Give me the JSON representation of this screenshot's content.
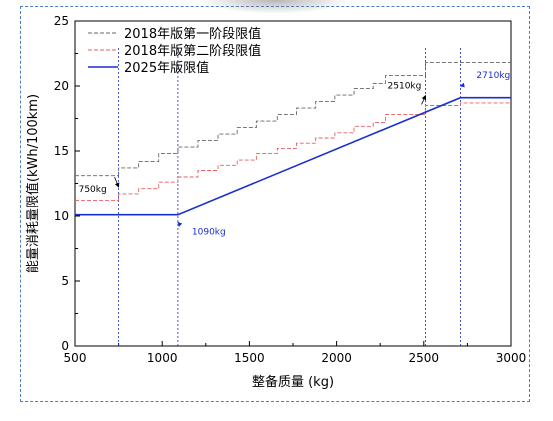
{
  "chart_data": {
    "type": "line",
    "xlabel": "整备质量 (kg)",
    "ylabel": "能量消耗量限值(kWh/100km)",
    "xlim": [
      500,
      3000
    ],
    "ylim": [
      0,
      25
    ],
    "x_ticks": [
      500,
      1000,
      1500,
      2000,
      2500,
      3000
    ],
    "y_ticks": [
      0,
      5,
      10,
      15,
      20,
      25
    ],
    "legend_position": "top-left",
    "grid": false,
    "series": [
      {
        "name": "2018年版第一阶段限值",
        "style": "dashed",
        "color": "#666666",
        "x": [
          500,
          750,
          865,
          980,
          1090,
          1205,
          1320,
          1430,
          1540,
          1660,
          1770,
          1880,
          1990,
          2100,
          2210,
          2280,
          2510,
          3000
        ],
        "y": [
          13.1,
          13.7,
          14.2,
          14.8,
          15.3,
          15.8,
          16.3,
          16.8,
          17.3,
          17.8,
          18.3,
          18.8,
          19.3,
          19.8,
          20.2,
          20.8,
          21.8,
          21.8
        ]
      },
      {
        "name": "2018年版第二阶段限值",
        "style": "dashed",
        "color": "#e06060",
        "x": [
          500,
          750,
          865,
          980,
          1090,
          1205,
          1320,
          1430,
          1540,
          1660,
          1770,
          1880,
          1990,
          2100,
          2210,
          2280,
          2510,
          2710,
          3000
        ],
        "y": [
          11.2,
          11.7,
          12.1,
          12.6,
          13.0,
          13.5,
          13.9,
          14.3,
          14.8,
          15.2,
          15.6,
          16.0,
          16.4,
          16.9,
          17.2,
          17.8,
          18.5,
          18.7,
          18.7
        ]
      },
      {
        "name": "2025年版限值",
        "style": "solid",
        "color": "#1a2fd0",
        "x": [
          500,
          1090,
          2710,
          3000
        ],
        "y": [
          10.1,
          10.1,
          19.1,
          19.1
        ]
      }
    ],
    "vertical_markers": [
      {
        "x": 750,
        "color": "#1a2fd0"
      },
      {
        "x": 1090,
        "color": "#1a2fd0"
      },
      {
        "x": 2510,
        "color": "#333333"
      },
      {
        "x": 2710,
        "color": "#1a2fd0"
      }
    ],
    "annotations": [
      {
        "text": "750kg",
        "x": 750,
        "y": 12.3,
        "color": "#000000"
      },
      {
        "text": "1090kg",
        "x": 1090,
        "y": 9.5,
        "color": "#1a2fd0"
      },
      {
        "text": "2510kg",
        "x": 2510,
        "y": 19.2,
        "color": "#000000"
      },
      {
        "text": "2710kg",
        "x": 2710,
        "y": 20.0,
        "color": "#1a2fd0"
      }
    ]
  }
}
